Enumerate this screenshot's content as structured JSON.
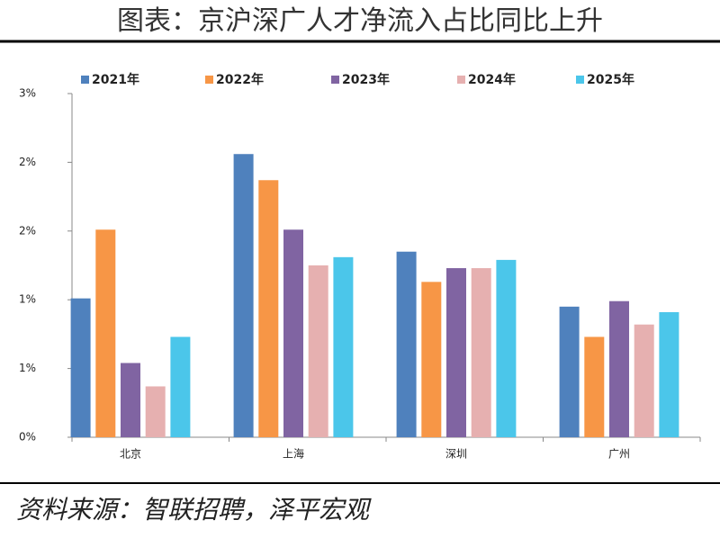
{
  "chart_data": {
    "type": "bar",
    "title": "图表：京沪深广人才净流入占比同比上升",
    "source": "资料来源：智联招聘，泽平宏观",
    "categories": [
      "北京",
      "上海",
      "深圳",
      "广州"
    ],
    "series": [
      {
        "name": "2021年",
        "color": "#4f81bd",
        "values": [
          1.01,
          2.06,
          1.35,
          0.95
        ]
      },
      {
        "name": "2022年",
        "color": "#f79646",
        "values": [
          1.51,
          1.87,
          1.13,
          0.73
        ]
      },
      {
        "name": "2023年",
        "color": "#8064a2",
        "values": [
          0.54,
          1.51,
          1.23,
          0.99
        ]
      },
      {
        "name": "2024年",
        "color": "#e6b0b0",
        "values": [
          0.37,
          1.25,
          1.23,
          0.82
        ]
      },
      {
        "name": "2025年",
        "color": "#4bc6ea",
        "values": [
          0.73,
          1.31,
          1.29,
          0.91
        ]
      }
    ],
    "ylim": [
      0,
      2.5
    ],
    "yticks": [
      {
        "value": 0,
        "label": "0%"
      },
      {
        "value": 0.5,
        "label": "1%"
      },
      {
        "value": 1,
        "label": "1%"
      },
      {
        "value": 1.5,
        "label": "2%"
      },
      {
        "value": 2,
        "label": "2%"
      },
      {
        "value": 2.5,
        "label": "3%"
      }
    ],
    "legend": "top",
    "grid": false
  }
}
